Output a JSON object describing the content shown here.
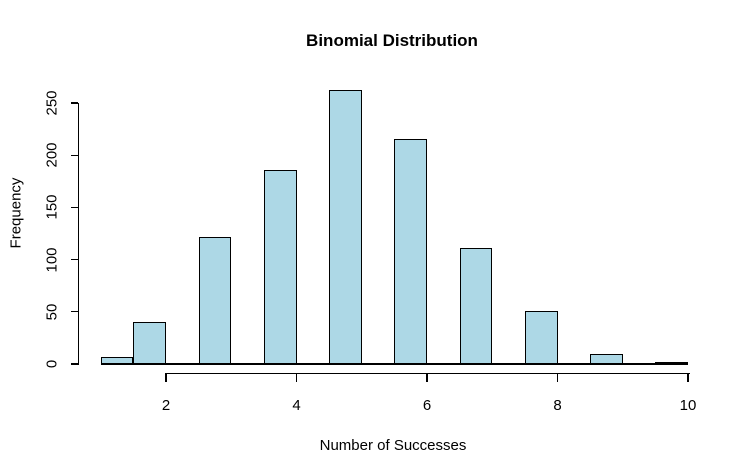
{
  "chart_data": {
    "type": "bar",
    "title": "Binomial Distribution",
    "xlabel": "Number of Successes",
    "ylabel": "Frequency",
    "categories": [
      1,
      2,
      3,
      4,
      5,
      6,
      7,
      8,
      9,
      10
    ],
    "values": [
      6,
      40,
      121,
      185,
      262,
      215,
      111,
      50,
      9,
      1
    ],
    "bars": [
      {
        "x": 1,
        "span": [
          1.0,
          1.5
        ],
        "freq": 6
      },
      {
        "x": 2,
        "span": [
          1.5,
          2.0
        ],
        "freq": 40
      },
      {
        "x": 3,
        "span": [
          2.5,
          3.0
        ],
        "freq": 121
      },
      {
        "x": 4,
        "span": [
          3.5,
          4.0
        ],
        "freq": 185
      },
      {
        "x": 5,
        "span": [
          4.5,
          5.0
        ],
        "freq": 262
      },
      {
        "x": 6,
        "span": [
          5.5,
          6.0
        ],
        "freq": 215
      },
      {
        "x": 7,
        "span": [
          6.5,
          7.0
        ],
        "freq": 111
      },
      {
        "x": 8,
        "span": [
          7.5,
          8.0
        ],
        "freq": 50
      },
      {
        "x": 9,
        "span": [
          8.5,
          9.0
        ],
        "freq": 9
      },
      {
        "x": 10,
        "span": [
          9.5,
          10.0
        ],
        "freq": 1
      }
    ],
    "x_ticks": [
      {
        "value": 2,
        "label": "2"
      },
      {
        "value": 4,
        "label": "4"
      },
      {
        "value": 6,
        "label": "6"
      },
      {
        "value": 8,
        "label": "8"
      },
      {
        "value": 10,
        "label": "10"
      }
    ],
    "y_ticks": [
      {
        "value": 0,
        "label": "0"
      },
      {
        "value": 50,
        "label": "50"
      },
      {
        "value": 100,
        "label": "100"
      },
      {
        "value": 150,
        "label": "150"
      },
      {
        "value": 200,
        "label": "200"
      },
      {
        "value": 250,
        "label": "250"
      }
    ],
    "xlim": [
      1,
      10
    ],
    "ylim": [
      0,
      262
    ],
    "baseline_span": [
      1,
      10
    ],
    "grid": false,
    "legend": "none",
    "colors": {
      "bar_fill": "#ADD8E6",
      "bar_border": "#000000",
      "axis": "#000000",
      "text": "#000000",
      "background": "#FFFFFF"
    }
  }
}
